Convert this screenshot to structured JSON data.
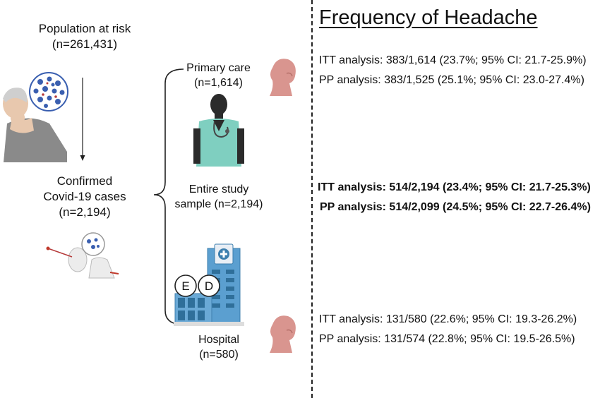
{
  "left": {
    "population_title": "Population at risk",
    "population_n": "(n=261,431)",
    "confirmed_line1": "Confirmed",
    "confirmed_line2": "Covid-19 cases",
    "confirmed_n": "(n=2,194)"
  },
  "middle": {
    "primary_title": "Primary care",
    "primary_n": "(n=1,614)",
    "entire_line1": "Entire study",
    "entire_line2": "sample (n=2,194)",
    "hospital_title": "Hospital",
    "hospital_n": "(n=580)",
    "ed_letter_e": "E",
    "ed_letter_d": "D"
  },
  "right": {
    "title": "Frequency of Headache",
    "primary_itt": "ITT analysis: 383/1,614 (23.7%; 95% CI: 21.7-25.9%)",
    "primary_pp": "PP analysis: 383/1,525 (25.1%; 95% CI: 23.0-27.4%)",
    "entire_itt": "ITT analysis: 514/2,194 (23.4%; 95% CI: 21.7-25.3%)",
    "entire_pp": "PP analysis: 514/2,099 (24.5%; 95% CI: 22.7-26.4%)",
    "hospital_itt": "ITT analysis: 131/580 (22.6%; 95% CI: 19.3-26.2%)",
    "hospital_pp": "PP analysis: 131/574 (22.8%; 95% CI: 19.5-26.5%)"
  },
  "colors": {
    "virus_blue": "#3a5fb0",
    "head_pink": "#d9958f",
    "scrubs_teal": "#7fcfc0",
    "building_blue": "#5b9fd0"
  },
  "icons": [
    "coughing-person-icon",
    "virus-icon",
    "nasal-swab-icon",
    "headache-head-icon",
    "doctor-icon",
    "hospital-building-icon"
  ]
}
